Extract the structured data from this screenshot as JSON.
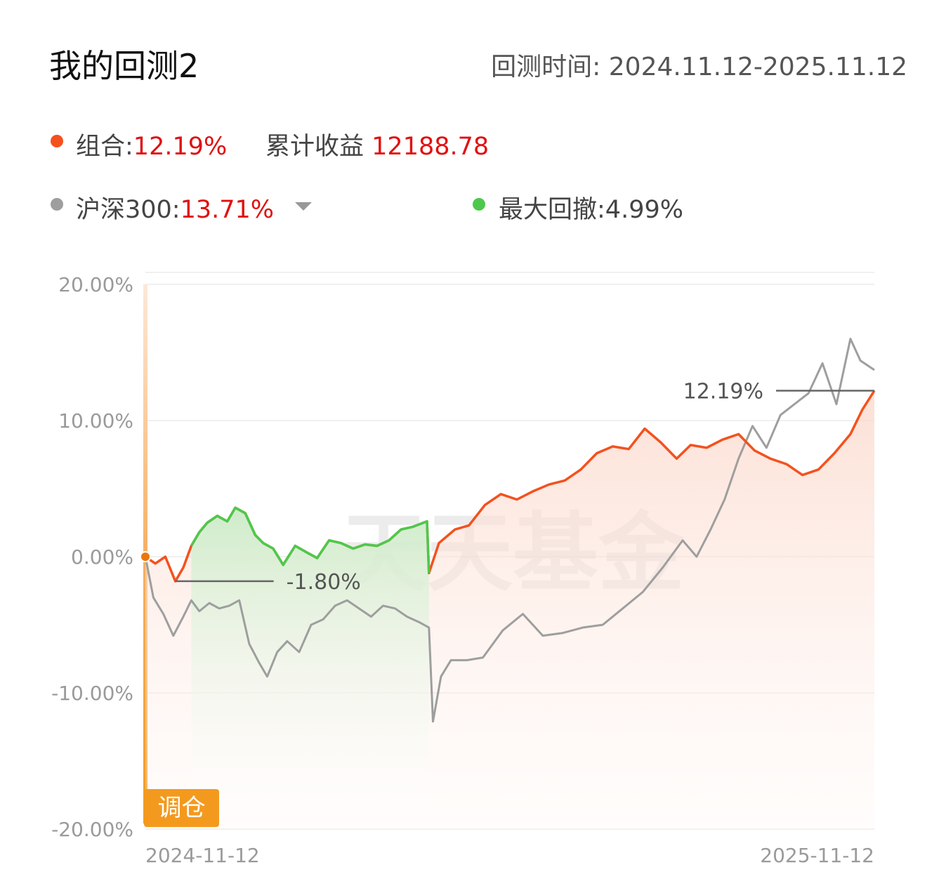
{
  "header": {
    "title": "我的回测2",
    "period_label": "回测时间:",
    "period_value": "2024.11.12-2025.11.12"
  },
  "legend": {
    "portfolio": {
      "label": "组合:",
      "value": "12.19%",
      "color": "#f4511e"
    },
    "cumulative": {
      "label": "累计收益",
      "value": "12188.78"
    },
    "benchmark": {
      "label": "沪深300:",
      "value": "13.71%",
      "color": "#9e9e9e",
      "dropdown_icon": "caret-down-icon"
    },
    "drawdown": {
      "label": "最大回撤:",
      "value": "4.99%",
      "color": "#4cc94c"
    }
  },
  "chart_data": {
    "type": "line",
    "y_ticks": [
      "20.00%",
      "10.00%",
      "0.00%",
      "-10.00%",
      "-20.00%"
    ],
    "ylim": [
      -20,
      20
    ],
    "x_labels": [
      "2024-11-12",
      "2025-11-12"
    ],
    "xlim": [
      "2024-11-12",
      "2025-11-12"
    ],
    "watermark": "天天基金",
    "rebalance_label": "调仓",
    "annotations": {
      "min_label": "-1.80%",
      "end_label": "12.19%"
    },
    "drawdown_range": [
      "2024-12-05",
      "2025-04-03"
    ],
    "series": [
      {
        "name": "组合",
        "color": "#f4511e",
        "x": [
          "2024-11-12",
          "2024-11-17",
          "2024-11-22",
          "2024-11-27",
          "2024-12-01",
          "2024-12-05",
          "2024-12-09",
          "2024-12-13",
          "2024-12-18",
          "2024-12-23",
          "2024-12-27",
          "2025-01-01",
          "2025-01-06",
          "2025-01-10",
          "2025-01-15",
          "2025-01-20",
          "2025-01-26",
          "2025-02-01",
          "2025-02-06",
          "2025-02-12",
          "2025-02-18",
          "2025-02-24",
          "2025-03-02",
          "2025-03-08",
          "2025-03-14",
          "2025-03-20",
          "2025-03-26",
          "2025-04-02",
          "2025-04-03",
          "2025-04-08",
          "2025-04-16",
          "2025-04-23",
          "2025-05-01",
          "2025-05-09",
          "2025-05-17",
          "2025-05-25",
          "2025-06-02",
          "2025-06-10",
          "2025-06-18",
          "2025-06-26",
          "2025-07-04",
          "2025-07-12",
          "2025-07-20",
          "2025-07-28",
          "2025-08-05",
          "2025-08-12",
          "2025-08-20",
          "2025-08-28",
          "2025-09-05",
          "2025-09-13",
          "2025-09-21",
          "2025-09-29",
          "2025-10-07",
          "2025-10-15",
          "2025-10-23",
          "2025-10-31",
          "2025-11-06",
          "2025-11-12"
        ],
        "values": [
          0,
          -0.5,
          0,
          -1.8,
          -0.8,
          0.8,
          1.8,
          2.5,
          3.0,
          2.6,
          3.6,
          3.2,
          1.6,
          1.0,
          0.6,
          -0.6,
          0.8,
          0.3,
          -0.1,
          1.2,
          1.0,
          0.6,
          0.9,
          0.8,
          1.2,
          2.0,
          2.2,
          2.6,
          -1.2,
          1.0,
          2.0,
          2.3,
          3.8,
          4.6,
          4.2,
          4.8,
          5.3,
          5.6,
          6.4,
          7.6,
          8.1,
          7.9,
          9.4,
          8.4,
          7.2,
          8.2,
          8.0,
          8.6,
          9.0,
          7.8,
          7.2,
          6.8,
          6.0,
          6.4,
          7.6,
          9.0,
          10.8,
          12.19
        ]
      },
      {
        "name": "沪深300",
        "color": "#9e9e9e",
        "x": [
          "2024-11-12",
          "2024-11-16",
          "2024-11-21",
          "2024-11-26",
          "2024-12-01",
          "2024-12-05",
          "2024-12-09",
          "2024-12-14",
          "2024-12-19",
          "2024-12-24",
          "2024-12-29",
          "2025-01-03",
          "2025-01-08",
          "2025-01-12",
          "2025-01-17",
          "2025-01-22",
          "2025-01-28",
          "2025-02-03",
          "2025-02-09",
          "2025-02-15",
          "2025-02-21",
          "2025-02-27",
          "2025-03-05",
          "2025-03-11",
          "2025-03-17",
          "2025-03-23",
          "2025-03-29",
          "2025-04-03",
          "2025-04-05",
          "2025-04-09",
          "2025-04-14",
          "2025-04-22",
          "2025-04-30",
          "2025-05-10",
          "2025-05-20",
          "2025-05-30",
          "2025-06-09",
          "2025-06-19",
          "2025-06-29",
          "2025-07-09",
          "2025-07-19",
          "2025-07-29",
          "2025-08-08",
          "2025-08-15",
          "2025-08-22",
          "2025-08-29",
          "2025-09-05",
          "2025-09-12",
          "2025-09-19",
          "2025-09-26",
          "2025-10-03",
          "2025-10-10",
          "2025-10-17",
          "2025-10-24",
          "2025-10-31",
          "2025-11-05",
          "2025-11-12"
        ],
        "values": [
          0,
          -3.0,
          -4.2,
          -5.8,
          -4.4,
          -3.2,
          -4.0,
          -3.4,
          -3.8,
          -3.6,
          -3.2,
          -6.4,
          -7.8,
          -8.8,
          -7.0,
          -6.2,
          -7.0,
          -5.0,
          -4.6,
          -3.6,
          -3.2,
          -3.8,
          -4.4,
          -3.6,
          -3.8,
          -4.4,
          -4.8,
          -5.2,
          -12.1,
          -8.8,
          -7.6,
          -7.6,
          -7.4,
          -5.4,
          -4.2,
          -5.8,
          -5.6,
          -5.2,
          -5.0,
          -3.8,
          -2.6,
          -0.8,
          1.2,
          0,
          2.0,
          4.2,
          7.2,
          9.6,
          8.0,
          10.4,
          11.2,
          12.0,
          14.2,
          11.2,
          16.0,
          14.4,
          13.71
        ]
      }
    ]
  }
}
